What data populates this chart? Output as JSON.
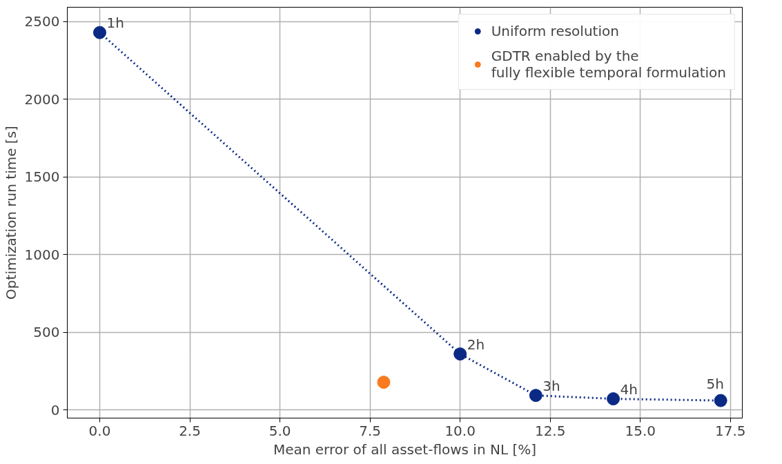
{
  "chart_data": {
    "type": "scatter",
    "xlabel": "Mean error of all asset-flows in NL [%]",
    "ylabel": "Optimization run time [s]",
    "series": [
      {
        "name": "Uniform resolution",
        "type": "line",
        "color": "#0b2a85",
        "x": [
          0.0,
          10.0,
          12.1,
          14.25,
          17.23
        ],
        "values": [
          2430,
          360,
          93,
          71,
          60
        ],
        "marker": "circle",
        "line_style": "dotted"
      },
      {
        "name": "GDTR enabled by the\nfully flexible temporal formulation",
        "color": "#f97a1f",
        "x": [
          7.88
        ],
        "values": [
          178
        ],
        "marker": "circle"
      }
    ],
    "annotations": [
      {
        "text": "1h",
        "x": 0.0,
        "y": 2430
      },
      {
        "text": "2h",
        "x": 10.0,
        "y": 360
      },
      {
        "text": "3h",
        "x": 12.1,
        "y": 93
      },
      {
        "text": "4h",
        "x": 14.25,
        "y": 71
      },
      {
        "text": "5h",
        "x": 17.23,
        "y": 60
      }
    ],
    "xlim": [
      -0.9,
      17.83
    ],
    "ylim": [
      -53,
      2593
    ],
    "xticks": [
      {
        "value": 0,
        "label": "0.0"
      },
      {
        "value": 2.5,
        "label": "2.5"
      },
      {
        "value": 5,
        "label": "5.0"
      },
      {
        "value": 7.5,
        "label": "7.5"
      },
      {
        "value": 10,
        "label": "10.0"
      },
      {
        "value": 12.5,
        "label": "12.5"
      },
      {
        "value": 15,
        "label": "15.0"
      },
      {
        "value": 17.5,
        "label": "17.5"
      }
    ],
    "yticks": [
      0,
      500,
      1000,
      1500,
      2000,
      2500
    ],
    "grid": true,
    "legend": "top right"
  }
}
